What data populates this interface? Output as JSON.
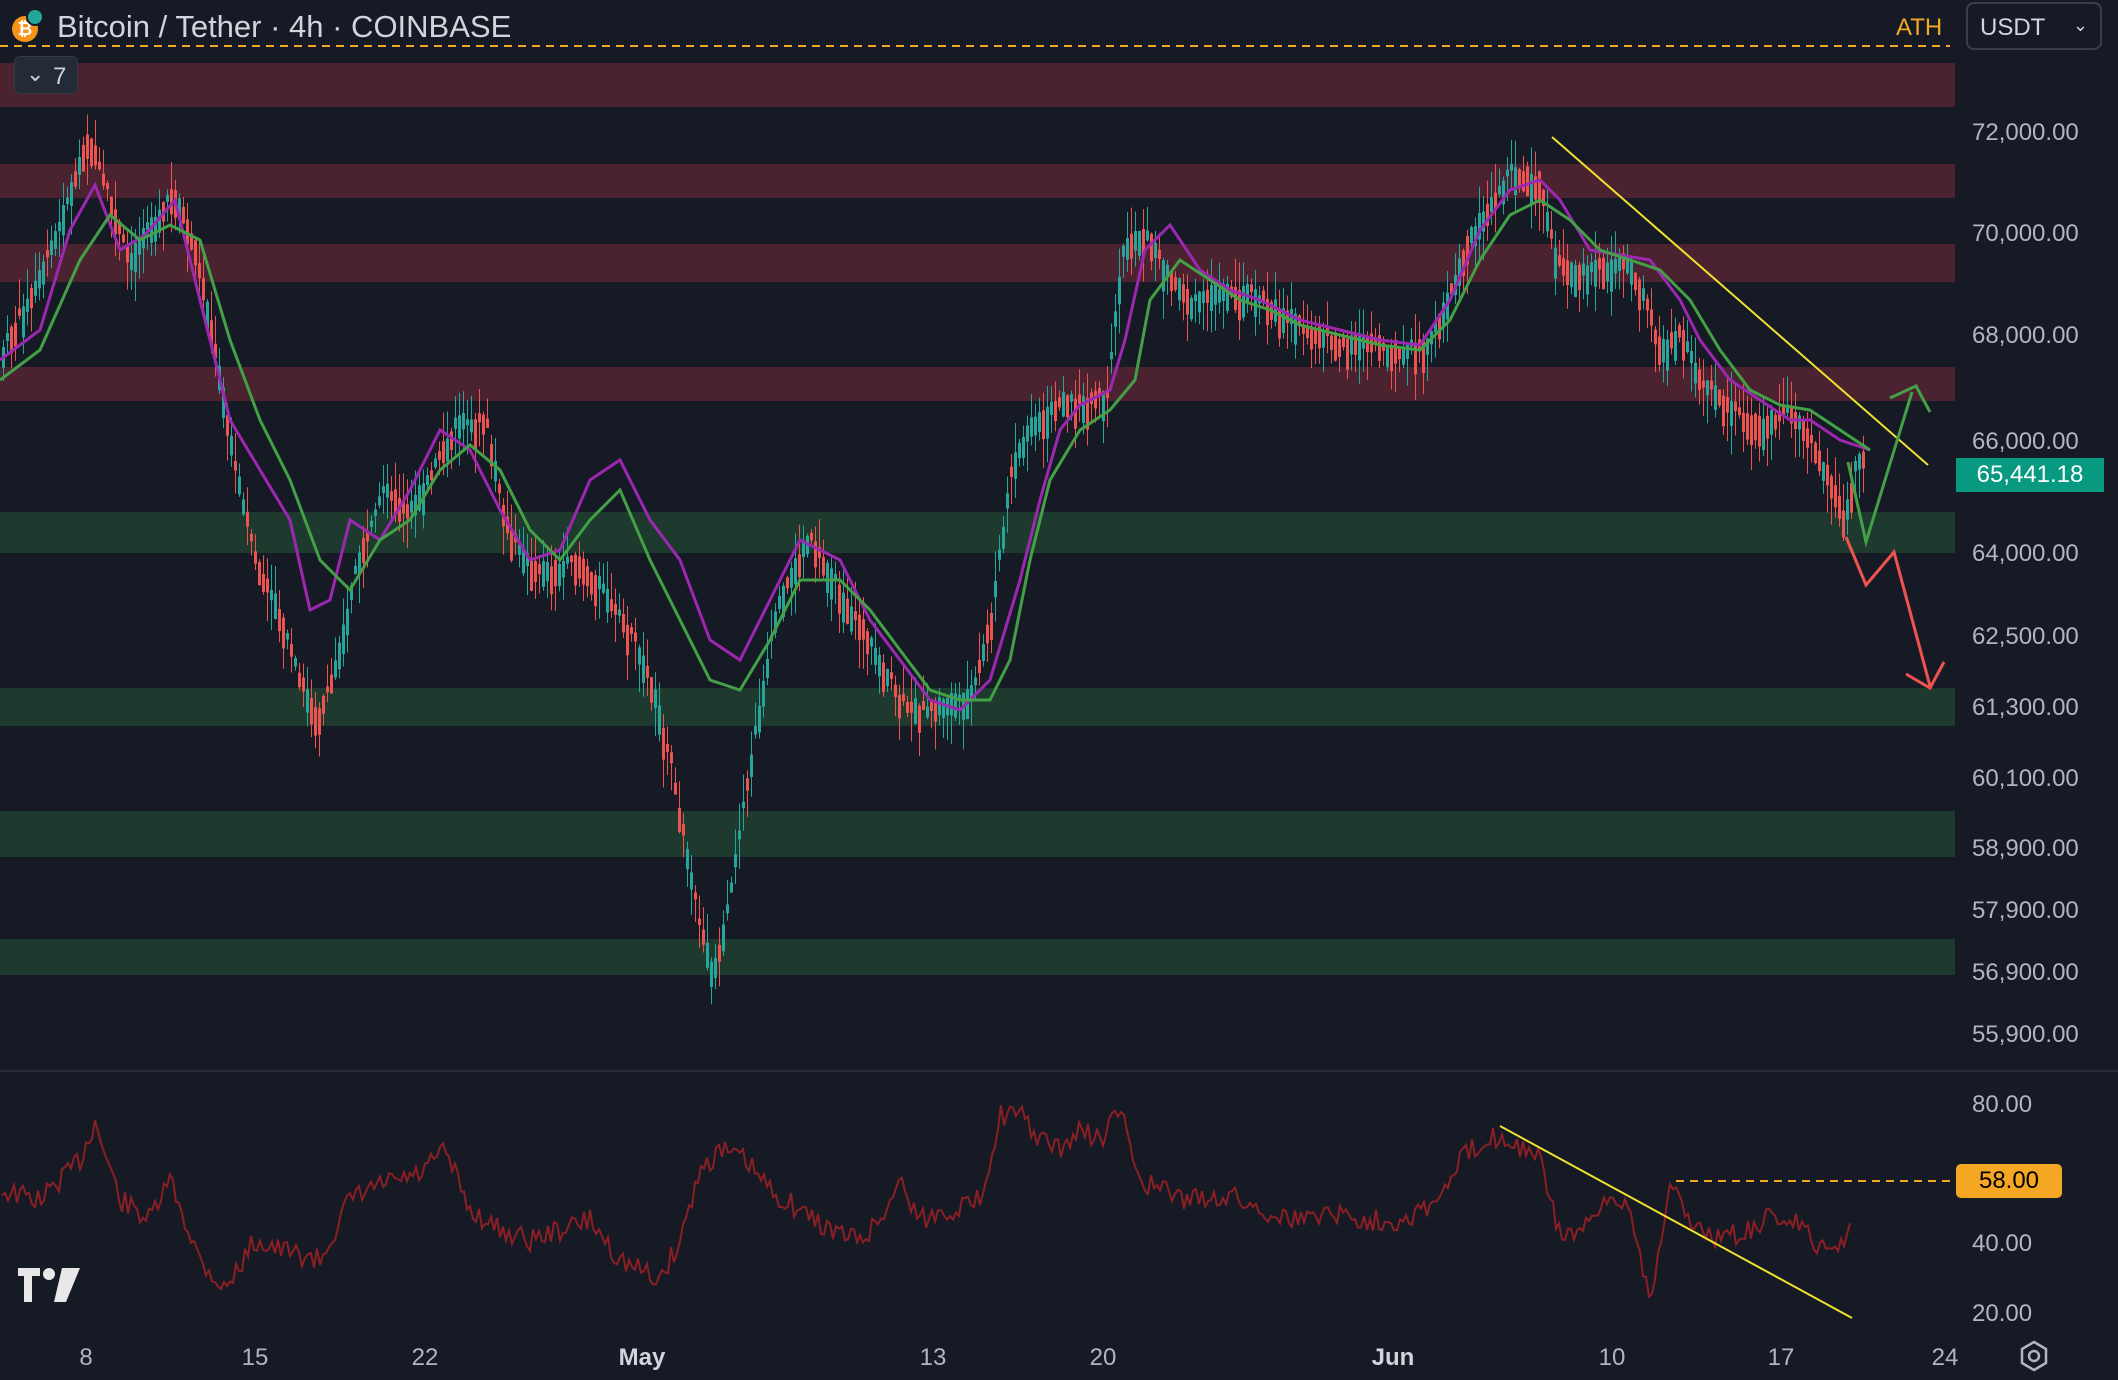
{
  "header": {
    "title": "Bitcoin / Tether · 4h · COINBASE",
    "ath_label": "ATH",
    "currency": "USDT"
  },
  "indicators_toggle": {
    "count": "7"
  },
  "price_axis": [
    "72,000.00",
    "70,000.00",
    "68,000.00",
    "66,000.00",
    "64,000.00",
    "62,500.00",
    "61,300.00",
    "60,100.00",
    "58,900.00",
    "57,900.00",
    "56,900.00",
    "55,900.00"
  ],
  "current_price": "65,441.18",
  "rsi_axis": [
    "80.00",
    "40.00",
    "20.00"
  ],
  "rsi_level": "58.00",
  "time_axis": [
    "8",
    "15",
    "22",
    "May",
    "13",
    "20",
    "Jun",
    "10",
    "17",
    "24"
  ],
  "colors": {
    "background": "#161a25",
    "up": "#26a69a",
    "down": "#ef5350",
    "resistance_zone": "#4a2230",
    "support_zone": "#1e3a2e",
    "trendline": "#f0e130",
    "ema_fast": "#9c27b0",
    "ema_slow": "#43a047",
    "rsi_line": "#8b1f24",
    "ath_line": "#f5a623"
  },
  "icons": [
    "bitcoin-icon",
    "chevron-down-icon",
    "tradingview-logo-icon",
    "settings-icon"
  ]
}
